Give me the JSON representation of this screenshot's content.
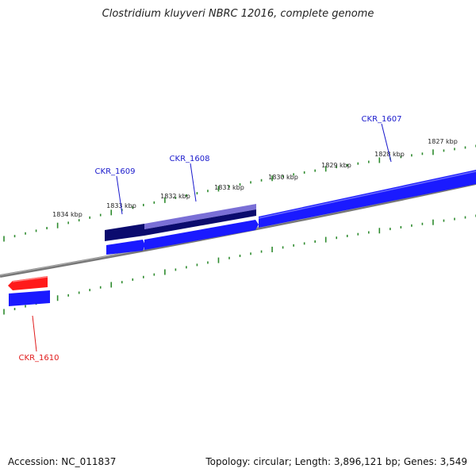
{
  "title": "Clostridium kluyveri NBRC 12016, complete genome",
  "footer": {
    "accession": "Accession: NC_011837",
    "stats": "Topology: circular; Length: 3,896,121 bp; Genes: 3,549"
  },
  "colors": {
    "backbone": "#808080",
    "tick": "#2e8b2e",
    "forward_gene": "#1a1aff",
    "reverse_gene": "#ff1a1a",
    "dark_gene": "#0b0b6e",
    "highlight_gene": "#7a6fd6",
    "label_forward": "#1a1acc",
    "label_reverse": "#e01a1a"
  },
  "scale_labels": [
    "1834 kbp",
    "1833 kbp",
    "1832 kbp",
    "1831 kbp",
    "1830 kbp",
    "1829 kbp",
    "1828 kbp",
    "1827 kbp"
  ],
  "gene_labels": [
    {
      "id": "g1609",
      "text": "CKR_1609",
      "strand": "forward"
    },
    {
      "id": "g1608",
      "text": "CKR_1608",
      "strand": "forward"
    },
    {
      "id": "g1607",
      "text": "CKR_1607",
      "strand": "forward"
    },
    {
      "id": "g1610",
      "text": "CKR_1610",
      "strand": "reverse"
    }
  ]
}
